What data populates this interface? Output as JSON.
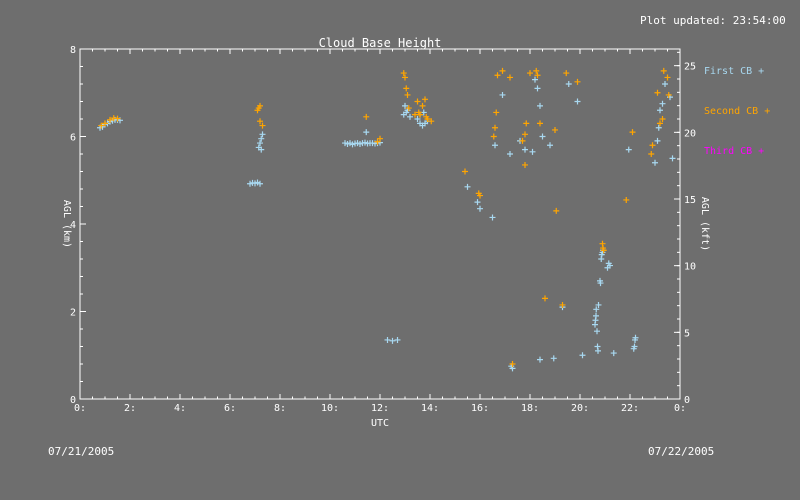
{
  "header": {
    "plot_updated": "Plot updated: 23:54:00"
  },
  "footer": {
    "date_start": "07/21/2005",
    "date_end": "07/22/2005"
  },
  "colors": {
    "background": "#6e6e6e",
    "axes": "#ffffff",
    "first_cb": "#a8d8f0",
    "second_cb": "#ffa500",
    "third_cb": "#ff00ff"
  },
  "chart_data": {
    "type": "scatter",
    "title": "Cloud Base Height",
    "xlabel": "UTC",
    "ylabel": "AGL (km)",
    "ylabel_right": "AGL (kft)",
    "xlim": [
      0,
      24
    ],
    "ylim": [
      0,
      8
    ],
    "ylim_right": [
      0,
      26.25
    ],
    "x_ticks": [
      "0:",
      "2:",
      "4:",
      "6:",
      "8:",
      "10:",
      "12:",
      "14:",
      "16:",
      "18:",
      "20:",
      "22:",
      "0:"
    ],
    "y_ticks": [
      "0",
      "2",
      "4",
      "6",
      "8"
    ],
    "y_ticks_right": [
      "0",
      "5",
      "10",
      "15",
      "20",
      "25"
    ],
    "grid": false,
    "legend_position": "right",
    "legend": [
      {
        "label": "First CB",
        "marker": "+"
      },
      {
        "label": "Second CB",
        "marker": "+"
      },
      {
        "label": "Third CB",
        "marker": "+"
      }
    ],
    "series": [
      {
        "name": "First CB",
        "color": "#a8d8f0",
        "points": [
          [
            0.8,
            6.2
          ],
          [
            0.9,
            6.22
          ],
          [
            1.0,
            6.28
          ],
          [
            1.1,
            6.3
          ],
          [
            1.2,
            6.34
          ],
          [
            1.3,
            6.36
          ],
          [
            1.4,
            6.38
          ],
          [
            1.5,
            6.38
          ],
          [
            1.6,
            6.37
          ],
          [
            6.8,
            4.92
          ],
          [
            6.9,
            4.94
          ],
          [
            7.0,
            4.93
          ],
          [
            7.1,
            4.95
          ],
          [
            7.2,
            4.92
          ],
          [
            7.15,
            5.75
          ],
          [
            7.2,
            5.85
          ],
          [
            7.25,
            5.95
          ],
          [
            7.3,
            6.05
          ],
          [
            7.25,
            5.7
          ],
          [
            10.6,
            5.85
          ],
          [
            10.7,
            5.83
          ],
          [
            10.8,
            5.85
          ],
          [
            10.9,
            5.82
          ],
          [
            11.0,
            5.84
          ],
          [
            11.1,
            5.85
          ],
          [
            11.2,
            5.83
          ],
          [
            11.3,
            5.85
          ],
          [
            11.4,
            5.86
          ],
          [
            11.5,
            5.84
          ],
          [
            11.6,
            5.85
          ],
          [
            11.7,
            5.85
          ],
          [
            11.8,
            5.84
          ],
          [
            11.9,
            5.85
          ],
          [
            12.0,
            5.86
          ],
          [
            11.45,
            6.1
          ],
          [
            12.3,
            1.35
          ],
          [
            12.5,
            1.33
          ],
          [
            12.7,
            1.35
          ],
          [
            12.95,
            6.5
          ],
          [
            13.0,
            6.7
          ],
          [
            13.05,
            6.55
          ],
          [
            13.1,
            6.6
          ],
          [
            13.2,
            6.45
          ],
          [
            13.5,
            6.4
          ],
          [
            13.6,
            6.3
          ],
          [
            13.7,
            6.25
          ],
          [
            13.8,
            6.3
          ],
          [
            13.9,
            6.35
          ],
          [
            13.6,
            6.5
          ],
          [
            13.75,
            6.55
          ],
          [
            15.5,
            4.85
          ],
          [
            15.9,
            4.5
          ],
          [
            16.0,
            4.35
          ],
          [
            16.5,
            4.15
          ],
          [
            16.6,
            5.8
          ],
          [
            16.9,
            6.95
          ],
          [
            17.2,
            5.6
          ],
          [
            17.6,
            5.9
          ],
          [
            17.8,
            5.7
          ],
          [
            18.1,
            5.65
          ],
          [
            18.2,
            7.3
          ],
          [
            18.3,
            7.1
          ],
          [
            18.4,
            6.7
          ],
          [
            18.5,
            6.0
          ],
          [
            18.8,
            5.8
          ],
          [
            17.3,
            0.7
          ],
          [
            17.25,
            0.75
          ],
          [
            18.4,
            0.9
          ],
          [
            18.95,
            0.93
          ],
          [
            19.3,
            2.1
          ],
          [
            19.55,
            7.2
          ],
          [
            19.9,
            6.8
          ],
          [
            20.1,
            1.0
          ],
          [
            20.6,
            1.7
          ],
          [
            20.62,
            1.8
          ],
          [
            20.64,
            1.9
          ],
          [
            20.65,
            2.05
          ],
          [
            20.68,
            1.55
          ],
          [
            20.7,
            1.2
          ],
          [
            20.72,
            1.1
          ],
          [
            20.74,
            2.15
          ],
          [
            20.8,
            2.7
          ],
          [
            20.82,
            2.65
          ],
          [
            20.85,
            3.2
          ],
          [
            20.87,
            3.3
          ],
          [
            20.9,
            3.35
          ],
          [
            20.92,
            3.4
          ],
          [
            21.1,
            3.0
          ],
          [
            21.15,
            3.1
          ],
          [
            21.2,
            3.05
          ],
          [
            21.35,
            1.05
          ],
          [
            21.95,
            5.7
          ],
          [
            22.15,
            1.15
          ],
          [
            22.18,
            1.2
          ],
          [
            22.2,
            1.35
          ],
          [
            22.22,
            1.4
          ],
          [
            23.0,
            5.4
          ],
          [
            23.1,
            5.9
          ],
          [
            23.15,
            6.2
          ],
          [
            23.2,
            6.6
          ],
          [
            23.3,
            6.75
          ],
          [
            23.4,
            7.2
          ],
          [
            23.6,
            6.9
          ],
          [
            23.7,
            5.5
          ]
        ]
      },
      {
        "name": "Second CB",
        "color": "#ffa500",
        "points": [
          [
            0.85,
            6.25
          ],
          [
            1.0,
            6.3
          ],
          [
            1.2,
            6.38
          ],
          [
            1.35,
            6.42
          ],
          [
            1.5,
            6.41
          ],
          [
            7.1,
            6.6
          ],
          [
            7.15,
            6.65
          ],
          [
            7.2,
            6.7
          ],
          [
            7.2,
            6.35
          ],
          [
            7.3,
            6.25
          ],
          [
            11.45,
            6.45
          ],
          [
            11.9,
            5.88
          ],
          [
            12.0,
            5.95
          ],
          [
            12.95,
            7.45
          ],
          [
            13.0,
            7.35
          ],
          [
            13.05,
            7.1
          ],
          [
            13.1,
            6.95
          ],
          [
            13.15,
            6.65
          ],
          [
            13.5,
            6.8
          ],
          [
            13.55,
            6.55
          ],
          [
            13.6,
            6.5
          ],
          [
            13.7,
            6.7
          ],
          [
            13.8,
            6.85
          ],
          [
            13.85,
            6.45
          ],
          [
            13.9,
            6.4
          ],
          [
            14.05,
            6.35
          ],
          [
            13.4,
            6.5
          ],
          [
            15.4,
            5.2
          ],
          [
            15.95,
            4.7
          ],
          [
            16.0,
            4.65
          ],
          [
            16.55,
            6.0
          ],
          [
            16.6,
            6.2
          ],
          [
            16.65,
            6.55
          ],
          [
            16.7,
            7.4
          ],
          [
            16.9,
            7.5
          ],
          [
            17.2,
            7.35
          ],
          [
            17.3,
            0.8
          ],
          [
            17.7,
            5.9
          ],
          [
            17.8,
            6.05
          ],
          [
            17.8,
            5.35
          ],
          [
            17.85,
            6.3
          ],
          [
            18.0,
            7.45
          ],
          [
            18.25,
            7.5
          ],
          [
            18.3,
            7.4
          ],
          [
            18.4,
            6.3
          ],
          [
            18.6,
            2.3
          ],
          [
            19.0,
            6.15
          ],
          [
            19.05,
            4.3
          ],
          [
            19.3,
            2.15
          ],
          [
            19.45,
            7.45
          ],
          [
            19.9,
            7.25
          ],
          [
            20.9,
            3.55
          ],
          [
            20.92,
            3.45
          ],
          [
            20.95,
            3.4
          ],
          [
            21.85,
            4.55
          ],
          [
            22.1,
            6.1
          ],
          [
            22.85,
            5.6
          ],
          [
            22.9,
            5.8
          ],
          [
            23.1,
            7.0
          ],
          [
            23.2,
            6.3
          ],
          [
            23.3,
            6.4
          ],
          [
            23.35,
            7.5
          ],
          [
            23.5,
            7.35
          ],
          [
            23.55,
            6.95
          ]
        ]
      },
      {
        "name": "Third CB",
        "color": "#ff00ff",
        "points": []
      }
    ]
  }
}
